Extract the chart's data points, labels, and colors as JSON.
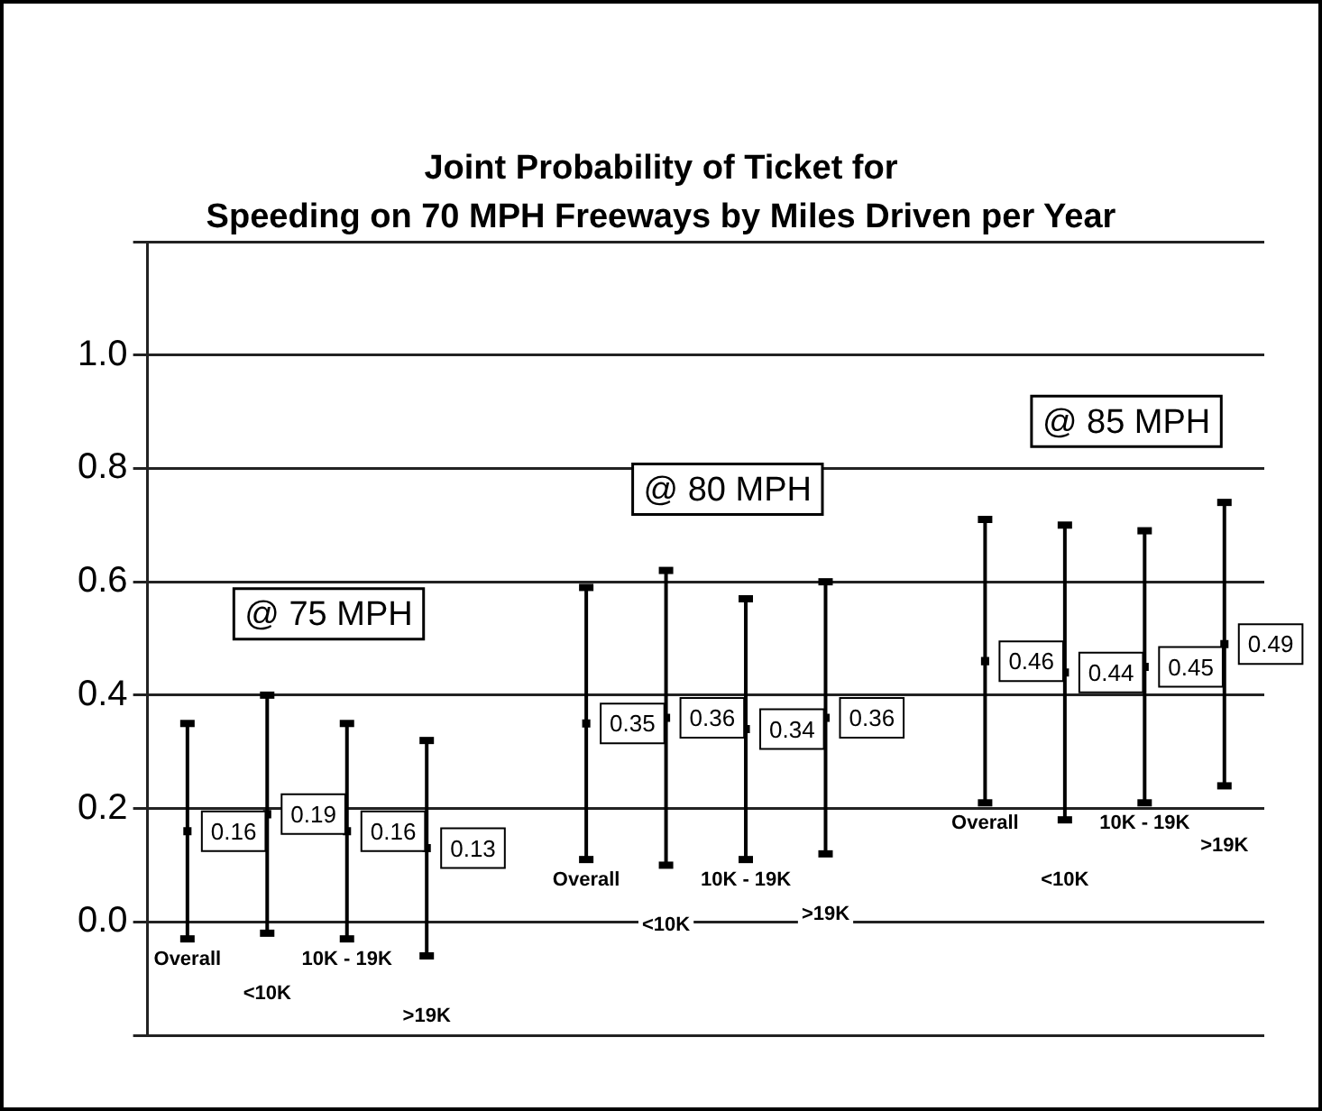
{
  "chart_data": {
    "type": "scatter",
    "title": "Joint Probability of Ticket for\nSpeeding on 70 MPH Freeways by Miles Driven per Year",
    "categories": [
      "Overall",
      "<10K",
      "10K - 19K",
      ">19K",
      null,
      "Overall",
      "<10K",
      "10K - 19K",
      ">19K",
      null,
      "Overall",
      "<10K",
      "10K - 19K",
      ">19K"
    ],
    "values": [
      0.16,
      0.19,
      0.16,
      0.13,
      null,
      0.35,
      0.36,
      0.34,
      0.36,
      null,
      0.46,
      0.44,
      0.45,
      0.49
    ],
    "errors": [
      [
        -0.03,
        0.35
      ],
      [
        -0.02,
        0.4
      ],
      [
        -0.03,
        0.35
      ],
      [
        -0.06,
        0.32
      ],
      null,
      [
        0.11,
        0.59
      ],
      [
        0.1,
        0.62
      ],
      [
        0.11,
        0.57
      ],
      [
        0.12,
        0.6
      ],
      null,
      [
        0.21,
        0.71
      ],
      [
        0.18,
        0.7
      ],
      [
        0.21,
        0.69
      ],
      [
        0.24,
        0.74
      ]
    ],
    "color": "#000000",
    "marker": "square",
    "data_labels": true,
    "annotations": [
      "@ 75 MPH",
      "@ 80 MPH",
      "@ 85 MPH"
    ],
    "ylim": [
      -0.2,
      1.2
    ],
    "yticks": [
      {
        "value": -0.2,
        "label": null
      },
      {
        "value": 0,
        "label": "0.0"
      },
      {
        "value": 0.2,
        "label": "0.2"
      },
      {
        "value": 0.4,
        "label": "0.4"
      },
      {
        "value": 0.6,
        "label": "0.6"
      },
      {
        "value": 0.8,
        "label": "0.8"
      },
      {
        "value": 1,
        "label": "1.0"
      },
      {
        "value": 1.2,
        "label": null
      }
    ],
    "grid": "y",
    "legend": false
  }
}
